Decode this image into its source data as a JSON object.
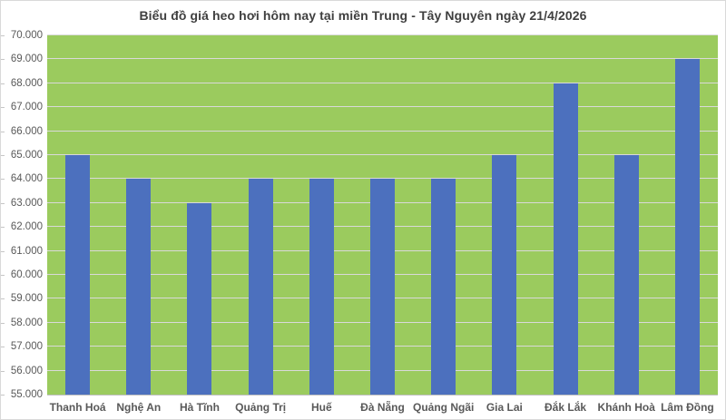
{
  "chart_data": {
    "type": "bar",
    "title": "Biểu đồ giá heo hơi hôm nay tại miền Trung - Tây Nguyên ngày 21/4/2026",
    "categories": [
      "Thanh Hoá",
      "Nghệ An",
      "Hà Tĩnh",
      "Quảng Trị",
      "Huế",
      "Đà Nẵng",
      "Quảng Ngãi",
      "Gia Lai",
      "Đắk Lắk",
      "Khánh Hoà",
      "Lâm Đồng"
    ],
    "values": [
      65000,
      64000,
      63000,
      64000,
      64000,
      64000,
      64000,
      65000,
      68000,
      65000,
      69000
    ],
    "xlabel": "",
    "ylabel": "",
    "ylim": [
      55000,
      70000
    ],
    "y_step": 1000,
    "y_tick_labels": [
      "55.000",
      "56.000",
      "57.000",
      "58.000",
      "59.000",
      "60.000",
      "61.000",
      "62.000",
      "63.000",
      "64.000",
      "65.000",
      "66.000",
      "67.000",
      "68.000",
      "69.000",
      "70.000"
    ],
    "grid": true,
    "legend": false,
    "colors": {
      "bar": "#4c70be",
      "plot_background": "#9bcb5e",
      "gridline": "#d9d9d9",
      "axis_line": "#c0c0c0",
      "axis_text": "#595959",
      "title_text": "#3f3f3f",
      "page_background": "#ffffff"
    }
  }
}
